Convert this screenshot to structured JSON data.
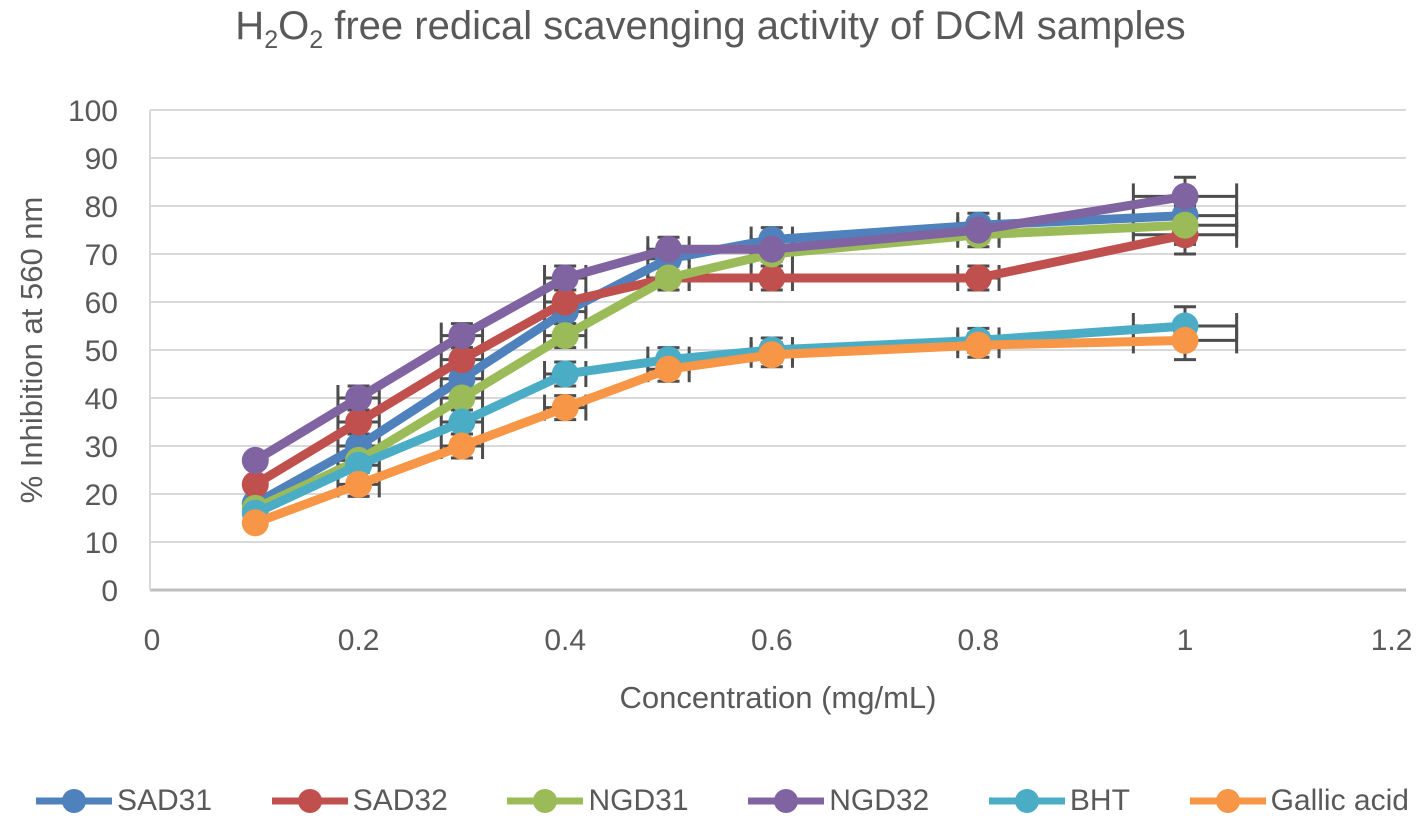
{
  "title_parts": {
    "t1": "H",
    "sub1": "2",
    "t2": "O",
    "sub2": "2",
    "t3": " free redical scavenging activity of DCM samples"
  },
  "chart_data": {
    "type": "line",
    "title": "H2O2 free redical scavenging activity of DCM samples",
    "xlabel": "Concentration (mg/mL)",
    "ylabel": "% Inhibition at 560 nm",
    "x": [
      0.1,
      0.2,
      0.3,
      0.4,
      0.5,
      0.6,
      0.8,
      1.0
    ],
    "xlim": [
      0,
      1.2
    ],
    "ylim": [
      0,
      100
    ],
    "x_tick_values": [
      0,
      0.2,
      0.4,
      0.6,
      0.8,
      1.0,
      1.2
    ],
    "x_tick_labels": [
      "0",
      "0.2",
      "0.4",
      "0.6",
      "0.8",
      "1",
      "1.2"
    ],
    "y_tick_values": [
      0,
      10,
      20,
      30,
      40,
      50,
      60,
      70,
      80,
      90,
      100
    ],
    "grid": "horizontal",
    "legend_position": "bottom",
    "marker": "circle",
    "series": [
      {
        "name": "SAD31",
        "color": "#4F81BD",
        "values": [
          18,
          30,
          44,
          58,
          69,
          73,
          76,
          78
        ]
      },
      {
        "name": "SAD32",
        "color": "#C0504D",
        "values": [
          22,
          35,
          48,
          60,
          65,
          65,
          65,
          74
        ]
      },
      {
        "name": "NGD31",
        "color": "#9BBB59",
        "values": [
          17,
          27,
          40,
          53,
          65,
          70,
          74,
          76
        ]
      },
      {
        "name": "NGD32",
        "color": "#8064A2",
        "values": [
          27,
          40,
          53,
          65,
          71,
          71,
          75,
          82
        ]
      },
      {
        "name": "BHT",
        "color": "#4BACC6",
        "values": [
          16,
          26,
          35,
          45,
          48,
          50,
          52,
          55
        ]
      },
      {
        "name": "Gallic acid",
        "color": "#F79646",
        "values": [
          14,
          22,
          30,
          38,
          46,
          49,
          51,
          52
        ]
      }
    ],
    "error_bars": {
      "y": 2.5,
      "x": 0.02,
      "y_last": 4,
      "x_last": 0.05,
      "color": "#4D4D4D",
      "skip_first_point": true
    },
    "axis_color": "#BFBFBF",
    "gridline_color": "#D9D9D9",
    "text_color": "#595959"
  }
}
